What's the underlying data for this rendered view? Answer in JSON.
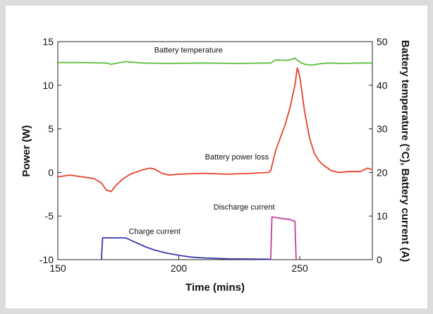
{
  "chart_data": {
    "type": "line",
    "xlabel": "Time (mins)",
    "ylabel_left": "Power (W)",
    "ylabel_right": "Battery temperature (°C), Battery current (A)",
    "xlim": [
      150,
      280
    ],
    "ylim_left": [
      -10,
      15
    ],
    "ylim_right": [
      0,
      50
    ],
    "x_ticks": [
      150,
      200,
      250
    ],
    "y_ticks_left": [
      -10,
      -5,
      0,
      5,
      10,
      15
    ],
    "y_ticks_right": [
      0,
      10,
      20,
      30,
      40,
      50
    ],
    "grid": false,
    "series": [
      {
        "name": "Battery temperature",
        "axis": "right",
        "color": "#5cbf3c",
        "x": [
          150,
          160,
          170,
          172,
          178,
          185,
          195,
          210,
          225,
          238,
          240,
          245,
          248,
          250,
          252,
          255,
          258,
          262,
          268,
          275,
          280
        ],
        "y": [
          45.2,
          45.2,
          45.1,
          44.8,
          45.4,
          45.1,
          45.0,
          45.1,
          45.0,
          45.1,
          45.8,
          45.7,
          46.2,
          45.3,
          44.8,
          44.6,
          44.9,
          45.1,
          45.0,
          45.1,
          45.1
        ]
      },
      {
        "name": "Battery power loss",
        "axis": "left",
        "color": "#e8402a",
        "x": [
          150,
          155,
          160,
          165,
          168,
          170,
          172,
          174,
          177,
          180,
          185,
          188,
          190,
          193,
          196,
          200,
          210,
          220,
          230,
          237,
          238,
          240,
          242,
          244,
          246,
          248,
          249,
          250,
          252,
          254,
          256,
          258,
          260,
          263,
          266,
          270,
          275,
          278,
          280
        ],
        "y": [
          -0.5,
          -0.3,
          -0.5,
          -0.7,
          -1.2,
          -2.0,
          -2.2,
          -1.5,
          -0.7,
          -0.2,
          0.3,
          0.5,
          0.4,
          -0.1,
          -0.3,
          -0.2,
          -0.1,
          -0.2,
          -0.1,
          0.0,
          0.2,
          2.5,
          4.0,
          5.5,
          7.5,
          10.0,
          12.0,
          11.0,
          7.0,
          4.0,
          2.2,
          1.3,
          0.8,
          0.2,
          0.0,
          0.1,
          0.1,
          0.5,
          0.3
        ]
      },
      {
        "name": "Charge current",
        "axis": "right",
        "color": "#3a3aa8",
        "x": [
          168,
          168.5,
          178,
          182,
          186,
          190,
          195,
          200,
          205,
          210,
          220,
          238
        ],
        "y": [
          0,
          5.0,
          5.0,
          4.0,
          3.0,
          2.2,
          1.5,
          1.0,
          0.6,
          0.4,
          0.2,
          0.1
        ]
      },
      {
        "name": "Discharge current",
        "axis": "right",
        "color": "#c040a0",
        "x": [
          238,
          238.5,
          242,
          246,
          248,
          248.5
        ],
        "y": [
          0,
          9.8,
          9.5,
          9.2,
          8.8,
          0
        ]
      }
    ],
    "annotations": [
      {
        "text": "Battery temperature",
        "x": 204,
        "y_right": 47.5
      },
      {
        "text": "Battery power loss",
        "x": 224,
        "y_left": 1.5
      },
      {
        "text": "Discharge current",
        "x": 227,
        "y_right": 11.5
      },
      {
        "text": "Charge current",
        "x": 190,
        "y_right": 5.9
      }
    ]
  }
}
